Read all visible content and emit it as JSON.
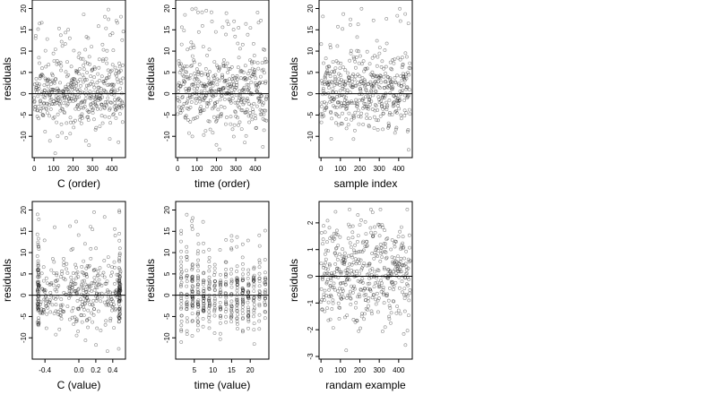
{
  "chart_data": [
    {
      "type": "scatter",
      "xlabel": "C (order)",
      "ylabel": "residuals",
      "xlim": [
        -10,
        470
      ],
      "ylim": [
        -15,
        22
      ],
      "xticks": [
        0,
        100,
        200,
        300,
        400
      ],
      "yticks": [
        -10,
        -5,
        0,
        5,
        10,
        15,
        20
      ],
      "hline": 0,
      "n_points": 460,
      "pattern": "order",
      "seed": 11
    },
    {
      "type": "scatter",
      "xlabel": "time (order)",
      "ylabel": "residuals",
      "xlim": [
        -10,
        470
      ],
      "ylim": [
        -15,
        22
      ],
      "xticks": [
        0,
        100,
        200,
        300,
        400
      ],
      "yticks": [
        -10,
        -5,
        0,
        5,
        10,
        15,
        20
      ],
      "hline": 0,
      "n_points": 460,
      "pattern": "order",
      "seed": 23
    },
    {
      "type": "scatter",
      "xlabel": "sample index",
      "ylabel": "residuals",
      "xlim": [
        -10,
        470
      ],
      "ylim": [
        -15,
        22
      ],
      "xticks": [
        0,
        100,
        200,
        300,
        400
      ],
      "yticks": [
        -10,
        -5,
        0,
        5,
        10,
        15,
        20
      ],
      "hline": 0,
      "n_points": 460,
      "pattern": "order",
      "seed": 37
    },
    {
      "type": "scatter",
      "xlabel": "C (value)",
      "ylabel": "residuals",
      "xlim": [
        -0.55,
        0.55
      ],
      "ylim": [
        -15,
        22
      ],
      "xticks": [
        -0.4,
        0.0,
        0.2,
        0.4
      ],
      "xtick_labels": [
        "-0.4",
        "0.0",
        "0.2",
        "0.4"
      ],
      "yticks": [
        -10,
        -5,
        0,
        5,
        10,
        15,
        20
      ],
      "hline": 0,
      "n_points": 460,
      "pattern": "cvalue",
      "seed": 41
    },
    {
      "type": "scatter",
      "xlabel": "time (value)",
      "ylabel": "residuals",
      "xlim": [
        0,
        25
      ],
      "ylim": [
        -15,
        22
      ],
      "xticks": [
        5,
        10,
        15,
        20
      ],
      "yticks": [
        -10,
        -5,
        0,
        5,
        10,
        15,
        20
      ],
      "hline": 0,
      "n_points": 460,
      "pattern": "tvalue",
      "seed": 53
    },
    {
      "type": "scatter",
      "xlabel": "randam example",
      "ylabel": "residuals",
      "xlim": [
        -10,
        470
      ],
      "ylim": [
        -3.1,
        2.8
      ],
      "xticks": [
        0,
        100,
        200,
        300,
        400
      ],
      "yticks": [
        -3,
        -2,
        -1,
        0,
        1,
        2
      ],
      "hline": 0,
      "n_points": 460,
      "pattern": "random",
      "seed": 67
    }
  ]
}
